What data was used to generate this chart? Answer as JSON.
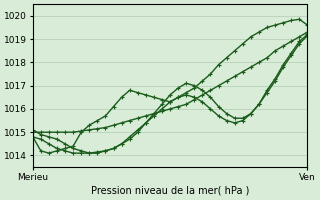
{
  "bg_color": "#d8ecd8",
  "grid_color": "#b0ccb0",
  "line_color": "#1a5c1a",
  "line_color2": "#2d7a2d",
  "xlabel": "Pression niveau de la mer( hPa )",
  "xtick_labels": [
    "Merieu",
    "Ven"
  ],
  "xtick_positions": [
    0,
    1
  ],
  "ylim": [
    1013.5,
    1020.5
  ],
  "yticks": [
    1014,
    1015,
    1016,
    1017,
    1018,
    1019,
    1020
  ],
  "series1": [
    1014.8,
    1014.2,
    1014.1,
    1014.2,
    1014.3,
    1014.4,
    1015.0,
    1015.3,
    1015.5,
    1015.7,
    1016.1,
    1016.5,
    1016.8,
    1016.7,
    1016.6,
    1016.5,
    1016.4,
    1016.3,
    1016.5,
    1016.7,
    1016.9,
    1017.2,
    1017.5,
    1017.9,
    1018.2,
    1018.5,
    1018.8,
    1019.1,
    1019.3,
    1019.5,
    1019.6,
    1019.7,
    1019.8,
    1019.85,
    1019.6
  ],
  "series2": [
    1015.0,
    1015.0,
    1015.0,
    1015.0,
    1015.0,
    1015.0,
    1015.05,
    1015.1,
    1015.15,
    1015.2,
    1015.3,
    1015.4,
    1015.5,
    1015.6,
    1015.7,
    1015.8,
    1015.9,
    1016.0,
    1016.1,
    1016.2,
    1016.4,
    1016.6,
    1016.8,
    1017.0,
    1017.2,
    1017.4,
    1017.6,
    1017.8,
    1018.0,
    1018.2,
    1018.5,
    1018.7,
    1018.9,
    1019.1,
    1019.3
  ],
  "series3": [
    1015.1,
    1014.9,
    1014.8,
    1014.7,
    1014.5,
    1014.3,
    1014.2,
    1014.1,
    1014.1,
    1014.2,
    1014.3,
    1014.5,
    1014.7,
    1015.0,
    1015.4,
    1015.7,
    1016.0,
    1016.3,
    1016.5,
    1016.6,
    1016.5,
    1016.3,
    1016.0,
    1015.7,
    1015.5,
    1015.4,
    1015.5,
    1015.8,
    1016.2,
    1016.8,
    1017.3,
    1017.9,
    1018.4,
    1018.9,
    1019.2
  ],
  "series4": [
    1014.8,
    1014.7,
    1014.5,
    1014.3,
    1014.2,
    1014.1,
    1014.1,
    1014.1,
    1014.15,
    1014.2,
    1014.3,
    1014.5,
    1014.8,
    1015.1,
    1015.4,
    1015.8,
    1016.2,
    1016.6,
    1016.9,
    1017.1,
    1017.0,
    1016.8,
    1016.5,
    1016.1,
    1015.8,
    1015.6,
    1015.6,
    1015.8,
    1016.2,
    1016.7,
    1017.2,
    1017.8,
    1018.3,
    1018.8,
    1019.15
  ]
}
